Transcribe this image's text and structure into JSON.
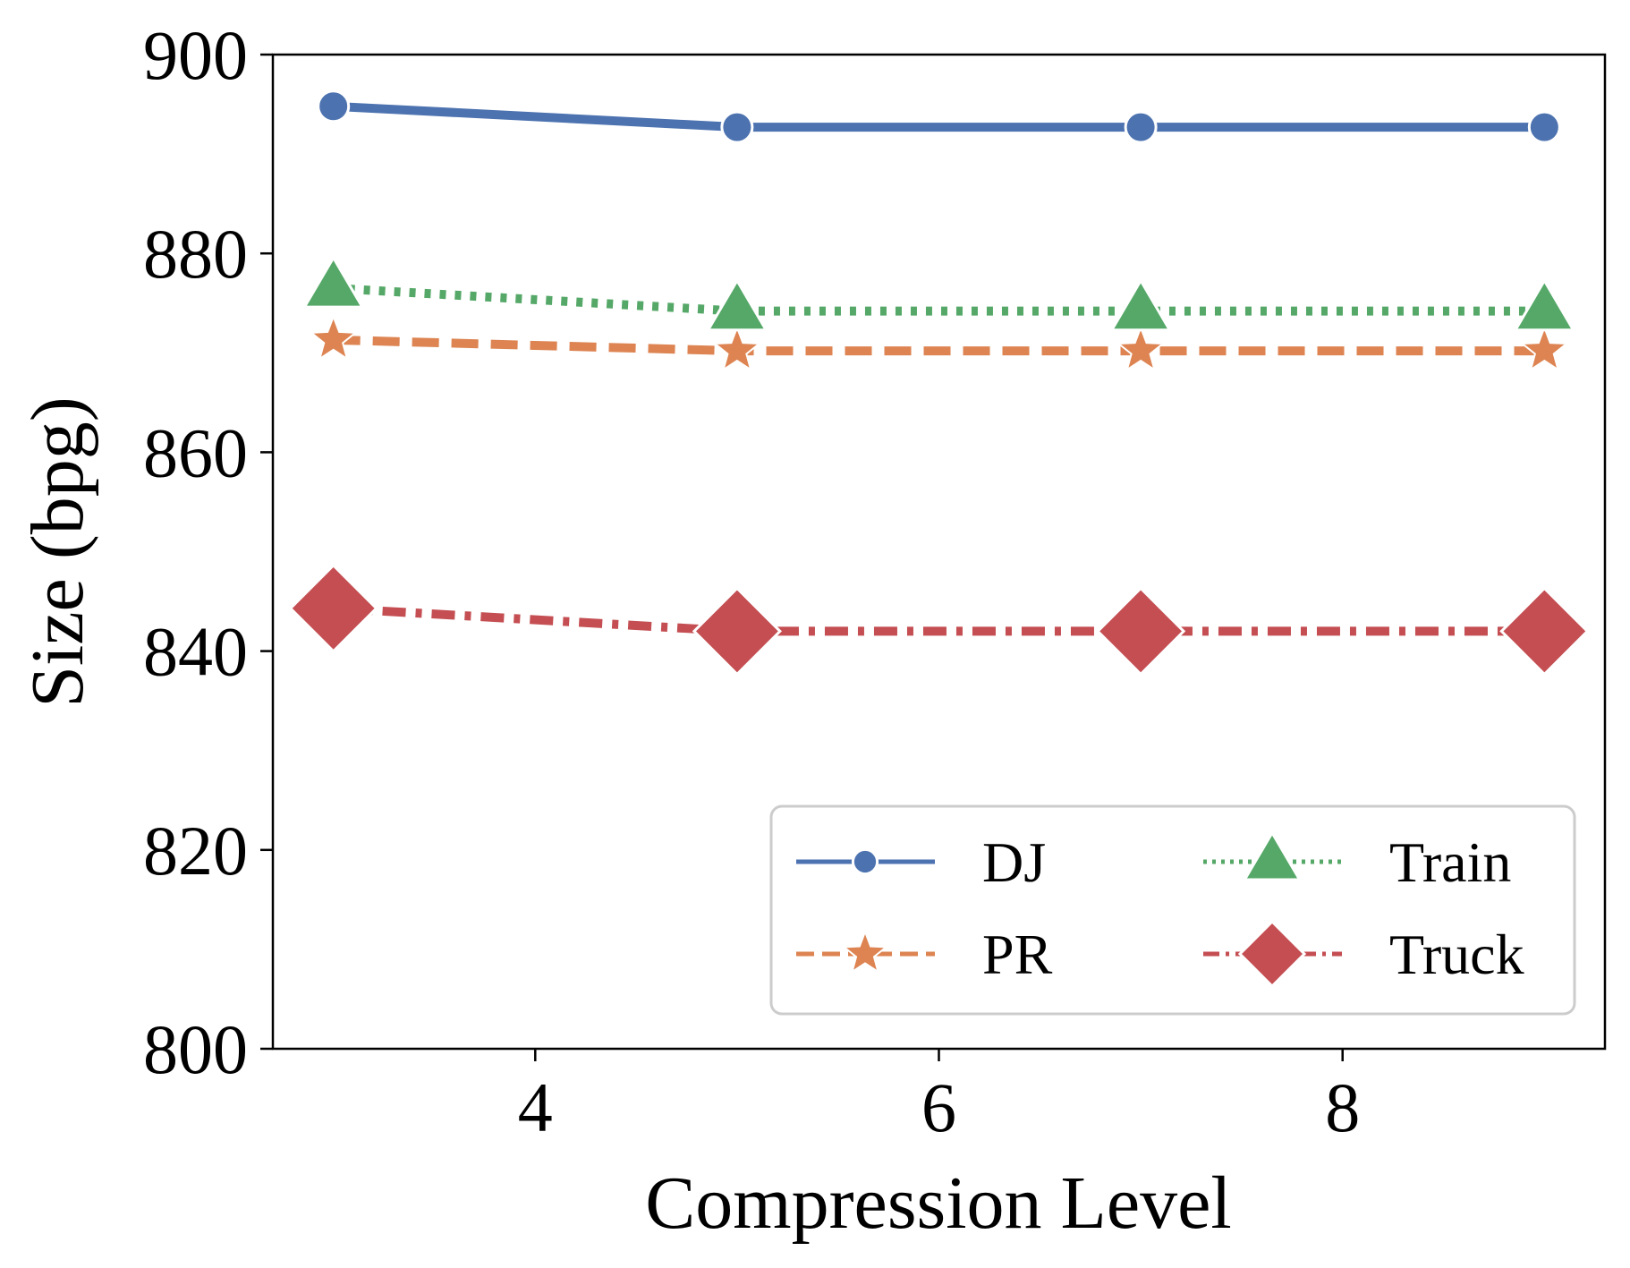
{
  "chart_data": {
    "type": "line",
    "xlabel": "Compression Level",
    "ylabel": "Size (bpg)",
    "xlim": [
      2.7,
      9.3
    ],
    "ylim": [
      800,
      900
    ],
    "xticks": [
      4,
      6,
      8
    ],
    "yticks": [
      800,
      820,
      840,
      860,
      880,
      900
    ],
    "grid": false,
    "legend_position": "lower-right",
    "legend_columns": 2,
    "x": [
      3,
      5,
      7,
      9
    ],
    "series": [
      {
        "name": "DJ",
        "values": [
          894.8,
          892.7,
          892.7,
          892.7
        ],
        "color": "#4c72b0",
        "marker": "circle",
        "linestyle": "solid"
      },
      {
        "name": "PR",
        "values": [
          871.3,
          870.2,
          870.2,
          870.2
        ],
        "color": "#dd8452",
        "marker": "star",
        "linestyle": "dashed"
      },
      {
        "name": "Train",
        "values": [
          876.5,
          874.2,
          874.2,
          874.2
        ],
        "color": "#55a868",
        "marker": "triangle",
        "linestyle": "dotted"
      },
      {
        "name": "Truck",
        "values": [
          844.3,
          842.0,
          842.0,
          842.0
        ],
        "color": "#c44e52",
        "marker": "diamond",
        "linestyle": "dashdot"
      }
    ]
  }
}
